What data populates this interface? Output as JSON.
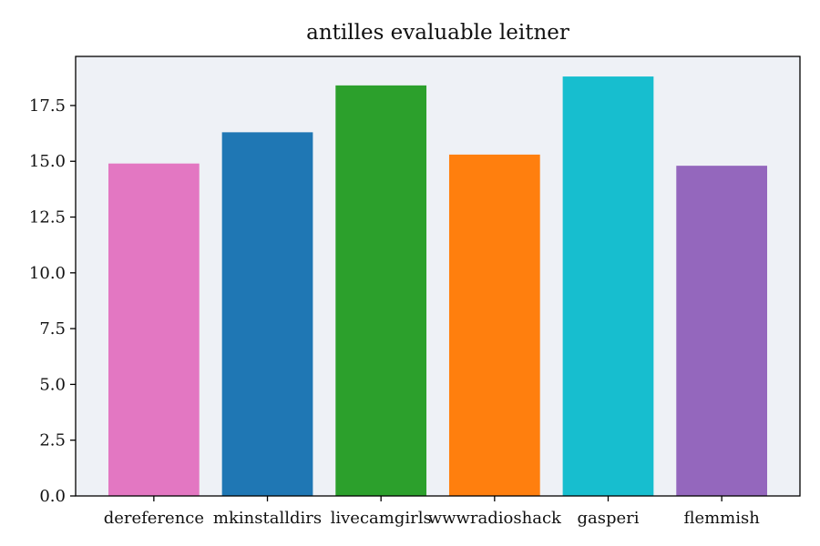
{
  "chart_data": {
    "type": "bar",
    "title": "antilles evaluable leitner",
    "xlabel": "",
    "ylabel": "",
    "categories": [
      "dereference",
      "mkinstalldirs",
      "livecamgirls",
      "wwwradioshack",
      "gasperi",
      "flemmish"
    ],
    "values": [
      14.9,
      16.3,
      18.4,
      15.3,
      18.8,
      14.8
    ],
    "colors": [
      "#e377c2",
      "#1f77b4",
      "#2ca02c",
      "#ff7f0e",
      "#17becf",
      "#9467bd"
    ],
    "ylim": [
      0,
      19.7
    ],
    "yticks": [
      0,
      2.5,
      5,
      7.5,
      10,
      12.5,
      15,
      17.5
    ],
    "ytick_labels": [
      "0.0",
      "2.5",
      "5.0",
      "7.5",
      "10.0",
      "12.5",
      "15.0",
      "17.5"
    ],
    "grid": false,
    "legend": "none",
    "background_color": "#eef1f6"
  }
}
